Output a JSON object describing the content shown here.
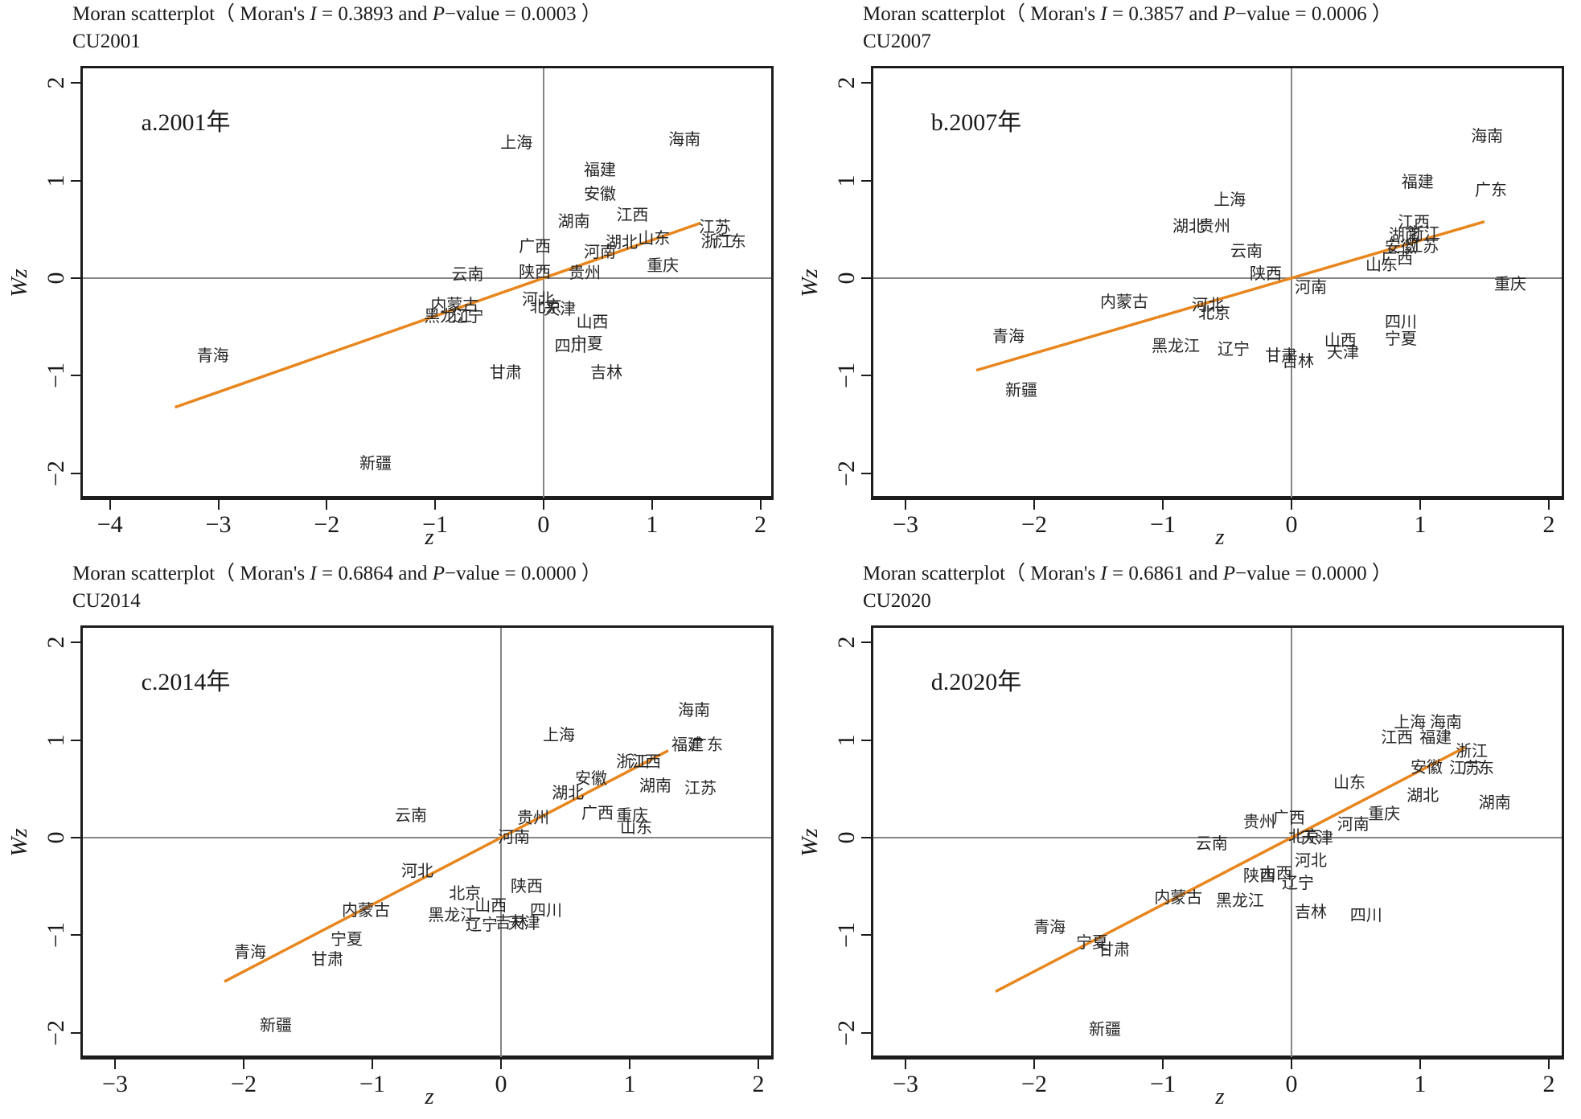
{
  "page": {
    "background": "#ffffff"
  },
  "colors": {
    "frame": "#1c1c1c",
    "zero_line": "#858585",
    "trend": "#E8861E",
    "text": "#262626"
  },
  "chart_data": [
    {
      "type": "scatter",
      "title_pre": "Moran scatterplot（ Moran's ",
      "i_sym": "I",
      "i_eq": " = 0.3893 and ",
      "p_sym": "P",
      "p_eq": "−value = 0.0003 ）",
      "subtitle": "CU2001",
      "moran_i": 0.3893,
      "p_value": 0.0003,
      "annotation": "a.2001年",
      "annotation_pos": {
        "x": -3.3,
        "y": 1.62
      },
      "xlabel": "z",
      "ylabel": "Wz",
      "xlim": [
        -4.25,
        2.1
      ],
      "ylim": [
        -2.25,
        2.15
      ],
      "xticks": [
        -4,
        -3,
        -2,
        -1,
        0,
        1,
        2
      ],
      "yticks": [
        -2,
        -1,
        0,
        1,
        2
      ],
      "trend_line": {
        "x1": -3.4,
        "y1": -1.324,
        "x2": 1.45,
        "y2": 0.565
      },
      "points": [
        {
          "label": "上海",
          "x": -0.25,
          "y": 1.38
        },
        {
          "label": "海南",
          "x": 1.3,
          "y": 1.42
        },
        {
          "label": "福建",
          "x": 0.52,
          "y": 1.1
        },
        {
          "label": "安徽",
          "x": 0.52,
          "y": 0.86
        },
        {
          "label": "湖南",
          "x": 0.28,
          "y": 0.58
        },
        {
          "label": "江西",
          "x": 0.82,
          "y": 0.64
        },
        {
          "label": "湖北",
          "x": 0.72,
          "y": 0.36
        },
        {
          "label": "山东",
          "x": 1.02,
          "y": 0.4
        },
        {
          "label": "江苏",
          "x": 1.58,
          "y": 0.52
        },
        {
          "label": "浙江",
          "x": 1.6,
          "y": 0.37
        },
        {
          "label": "广东",
          "x": 1.72,
          "y": 0.37
        },
        {
          "label": "河南",
          "x": 0.52,
          "y": 0.26
        },
        {
          "label": "广西",
          "x": -0.08,
          "y": 0.32
        },
        {
          "label": "陕西",
          "x": -0.08,
          "y": 0.06
        },
        {
          "label": "贵州",
          "x": 0.38,
          "y": 0.05
        },
        {
          "label": "重庆",
          "x": 1.1,
          "y": 0.12
        },
        {
          "label": "云南",
          "x": -0.7,
          "y": 0.03
        },
        {
          "label": "河北",
          "x": -0.05,
          "y": -0.22
        },
        {
          "label": "北京",
          "x": 0.02,
          "y": -0.3
        },
        {
          "label": "天津",
          "x": 0.15,
          "y": -0.32
        },
        {
          "label": "山西",
          "x": 0.45,
          "y": -0.45
        },
        {
          "label": "内蒙古",
          "x": -0.82,
          "y": -0.28
        },
        {
          "label": "黑龙江",
          "x": -0.88,
          "y": -0.4
        },
        {
          "label": "辽宁",
          "x": -0.7,
          "y": -0.4
        },
        {
          "label": "四川",
          "x": 0.25,
          "y": -0.7
        },
        {
          "label": "宁夏",
          "x": 0.4,
          "y": -0.68
        },
        {
          "label": "青海",
          "x": -3.05,
          "y": -0.8
        },
        {
          "label": "甘肃",
          "x": -0.35,
          "y": -0.97
        },
        {
          "label": "吉林",
          "x": 0.58,
          "y": -0.97
        },
        {
          "label": "新疆",
          "x": -1.55,
          "y": -1.9
        }
      ]
    },
    {
      "type": "scatter",
      "title_pre": "Moran scatterplot（ Moran's ",
      "i_sym": "I",
      "i_eq": " = 0.3857 and ",
      "p_sym": "P",
      "p_eq": "−value = 0.0006 ）",
      "subtitle": "CU2007",
      "moran_i": 0.3857,
      "p_value": 0.0006,
      "annotation": "b.2007年",
      "annotation_pos": {
        "x": -2.45,
        "y": 1.62
      },
      "xlabel": "z",
      "ylabel": "Wz",
      "xlim": [
        -3.25,
        2.1
      ],
      "ylim": [
        -2.25,
        2.15
      ],
      "xticks": [
        -3,
        -2,
        -1,
        0,
        1,
        2
      ],
      "yticks": [
        -2,
        -1,
        0,
        1,
        2
      ],
      "trend_line": {
        "x1": -2.45,
        "y1": -0.945,
        "x2": 1.5,
        "y2": 0.579
      },
      "points": [
        {
          "label": "海南",
          "x": 1.52,
          "y": 1.45
        },
        {
          "label": "福建",
          "x": 0.98,
          "y": 0.98
        },
        {
          "label": "广东",
          "x": 1.55,
          "y": 0.9
        },
        {
          "label": "上海",
          "x": -0.48,
          "y": 0.8
        },
        {
          "label": "湖北",
          "x": -0.8,
          "y": 0.53
        },
        {
          "label": "贵州",
          "x": -0.6,
          "y": 0.53
        },
        {
          "label": "江西",
          "x": 0.95,
          "y": 0.57
        },
        {
          "label": "湖南",
          "x": 0.88,
          "y": 0.44
        },
        {
          "label": "浙江",
          "x": 1.03,
          "y": 0.45
        },
        {
          "label": "安徽",
          "x": 0.85,
          "y": 0.31
        },
        {
          "label": "江苏",
          "x": 1.02,
          "y": 0.32
        },
        {
          "label": "广西",
          "x": 0.82,
          "y": 0.2
        },
        {
          "label": "山东",
          "x": 0.7,
          "y": 0.13
        },
        {
          "label": "云南",
          "x": -0.35,
          "y": 0.27
        },
        {
          "label": "陕西",
          "x": -0.2,
          "y": 0.04
        },
        {
          "label": "河南",
          "x": 0.15,
          "y": -0.1
        },
        {
          "label": "重庆",
          "x": 1.7,
          "y": -0.07
        },
        {
          "label": "内蒙古",
          "x": -1.3,
          "y": -0.25
        },
        {
          "label": "河北",
          "x": -0.65,
          "y": -0.28
        },
        {
          "label": "北京",
          "x": -0.6,
          "y": -0.36
        },
        {
          "label": "青海",
          "x": -2.2,
          "y": -0.6
        },
        {
          "label": "黑龙江",
          "x": -0.9,
          "y": -0.7
        },
        {
          "label": "辽宁",
          "x": -0.45,
          "y": -0.73
        },
        {
          "label": "甘肃",
          "x": -0.08,
          "y": -0.8
        },
        {
          "label": "吉林",
          "x": 0.05,
          "y": -0.86
        },
        {
          "label": "山西",
          "x": 0.38,
          "y": -0.64
        },
        {
          "label": "天津",
          "x": 0.4,
          "y": -0.77
        },
        {
          "label": "四川",
          "x": 0.85,
          "y": -0.45
        },
        {
          "label": "宁夏",
          "x": 0.85,
          "y": -0.63
        },
        {
          "label": "新疆",
          "x": -2.1,
          "y": -1.15
        }
      ]
    },
    {
      "type": "scatter",
      "title_pre": "Moran scatterplot（ Moran's ",
      "i_sym": "I",
      "i_eq": " = 0.6864 and ",
      "p_sym": "P",
      "p_eq": "−value = 0.0000 ）",
      "subtitle": "CU2014",
      "moran_i": 0.6864,
      "p_value": 0.0,
      "annotation": "c.2014年",
      "annotation_pos": {
        "x": -2.45,
        "y": 1.62
      },
      "xlabel": "z",
      "ylabel": "Wz",
      "xlim": [
        -3.25,
        2.1
      ],
      "ylim": [
        -2.25,
        2.15
      ],
      "xticks": [
        -3,
        -2,
        -1,
        0,
        1,
        2
      ],
      "yticks": [
        -2,
        -1,
        0,
        1,
        2
      ],
      "trend_line": {
        "x1": -2.15,
        "y1": -1.476,
        "x2": 1.3,
        "y2": 0.892
      },
      "points": [
        {
          "label": "海南",
          "x": 1.5,
          "y": 1.3
        },
        {
          "label": "上海",
          "x": 0.45,
          "y": 1.05
        },
        {
          "label": "福建",
          "x": 1.45,
          "y": 0.95
        },
        {
          "label": "广东",
          "x": 1.6,
          "y": 0.95
        },
        {
          "label": "浙江",
          "x": 1.02,
          "y": 0.77
        },
        {
          "label": "江西",
          "x": 1.12,
          "y": 0.77
        },
        {
          "label": "安徽",
          "x": 0.7,
          "y": 0.6
        },
        {
          "label": "湖南",
          "x": 1.2,
          "y": 0.53
        },
        {
          "label": "江苏",
          "x": 1.55,
          "y": 0.5
        },
        {
          "label": "湖北",
          "x": 0.52,
          "y": 0.45
        },
        {
          "label": "贵州",
          "x": 0.25,
          "y": 0.2
        },
        {
          "label": "广西",
          "x": 0.75,
          "y": 0.25
        },
        {
          "label": "重庆",
          "x": 1.02,
          "y": 0.22
        },
        {
          "label": "山东",
          "x": 1.05,
          "y": 0.1
        },
        {
          "label": "云南",
          "x": -0.7,
          "y": 0.22
        },
        {
          "label": "河南",
          "x": 0.1,
          "y": 0.0
        },
        {
          "label": "河北",
          "x": -0.65,
          "y": -0.35
        },
        {
          "label": "北京",
          "x": -0.28,
          "y": -0.58
        },
        {
          "label": "山西",
          "x": -0.08,
          "y": -0.7
        },
        {
          "label": "内蒙古",
          "x": -1.05,
          "y": -0.75
        },
        {
          "label": "黑龙江",
          "x": -0.38,
          "y": -0.8
        },
        {
          "label": "辽宁",
          "x": -0.15,
          "y": -0.9
        },
        {
          "label": "吉林",
          "x": 0.08,
          "y": -0.87
        },
        {
          "label": "天津",
          "x": 0.18,
          "y": -0.88
        },
        {
          "label": "陕西",
          "x": 0.2,
          "y": -0.5
        },
        {
          "label": "四川",
          "x": 0.35,
          "y": -0.75
        },
        {
          "label": "宁夏",
          "x": -1.2,
          "y": -1.05
        },
        {
          "label": "青海",
          "x": -1.95,
          "y": -1.18
        },
        {
          "label": "甘肃",
          "x": -1.35,
          "y": -1.25
        },
        {
          "label": "新疆",
          "x": -1.75,
          "y": -1.93
        }
      ]
    },
    {
      "type": "scatter",
      "title_pre": "Moran scatterplot（ Moran's ",
      "i_sym": "I",
      "i_eq": " = 0.6861 and ",
      "p_sym": "P",
      "p_eq": "−value = 0.0000 ）",
      "subtitle": "CU2020",
      "moran_i": 0.6861,
      "p_value": 0.0,
      "annotation": "d.2020年",
      "annotation_pos": {
        "x": -2.45,
        "y": 1.62
      },
      "xlabel": "z",
      "ylabel": "Wz",
      "xlim": [
        -3.25,
        2.1
      ],
      "ylim": [
        -2.25,
        2.15
      ],
      "xticks": [
        -3,
        -2,
        -1,
        0,
        1,
        2
      ],
      "yticks": [
        -2,
        -1,
        0,
        1,
        2
      ],
      "trend_line": {
        "x1": -2.3,
        "y1": -1.578,
        "x2": 1.35,
        "y2": 0.926
      },
      "points": [
        {
          "label": "上海",
          "x": 0.92,
          "y": 1.18
        },
        {
          "label": "海南",
          "x": 1.2,
          "y": 1.18
        },
        {
          "label": "江西",
          "x": 0.82,
          "y": 1.02
        },
        {
          "label": "福建",
          "x": 1.12,
          "y": 1.02
        },
        {
          "label": "浙江",
          "x": 1.4,
          "y": 0.88
        },
        {
          "label": "安徽",
          "x": 1.05,
          "y": 0.72
        },
        {
          "label": "江苏",
          "x": 1.35,
          "y": 0.71
        },
        {
          "label": "广东",
          "x": 1.45,
          "y": 0.71
        },
        {
          "label": "山东",
          "x": 0.45,
          "y": 0.56
        },
        {
          "label": "湖北",
          "x": 1.02,
          "y": 0.43
        },
        {
          "label": "湖南",
          "x": 1.58,
          "y": 0.35
        },
        {
          "label": "贵州",
          "x": -0.25,
          "y": 0.16
        },
        {
          "label": "广西",
          "x": -0.02,
          "y": 0.2
        },
        {
          "label": "重庆",
          "x": 0.72,
          "y": 0.24
        },
        {
          "label": "河南",
          "x": 0.48,
          "y": 0.13
        },
        {
          "label": "北京",
          "x": 0.1,
          "y": 0.01
        },
        {
          "label": "天津",
          "x": 0.2,
          "y": -0.01
        },
        {
          "label": "云南",
          "x": -0.62,
          "y": -0.07
        },
        {
          "label": "河北",
          "x": 0.15,
          "y": -0.24
        },
        {
          "label": "陕西",
          "x": -0.25,
          "y": -0.4
        },
        {
          "label": "山西",
          "x": -0.12,
          "y": -0.37
        },
        {
          "label": "辽宁",
          "x": 0.05,
          "y": -0.47
        },
        {
          "label": "内蒙古",
          "x": -0.88,
          "y": -0.62
        },
        {
          "label": "黑龙江",
          "x": -0.4,
          "y": -0.65
        },
        {
          "label": "吉林",
          "x": 0.15,
          "y": -0.77
        },
        {
          "label": "四川",
          "x": 0.58,
          "y": -0.8
        },
        {
          "label": "青海",
          "x": -1.88,
          "y": -0.92
        },
        {
          "label": "宁夏",
          "x": -1.55,
          "y": -1.08
        },
        {
          "label": "甘肃",
          "x": -1.38,
          "y": -1.15
        },
        {
          "label": "新疆",
          "x": -1.45,
          "y": -1.97
        }
      ]
    }
  ]
}
